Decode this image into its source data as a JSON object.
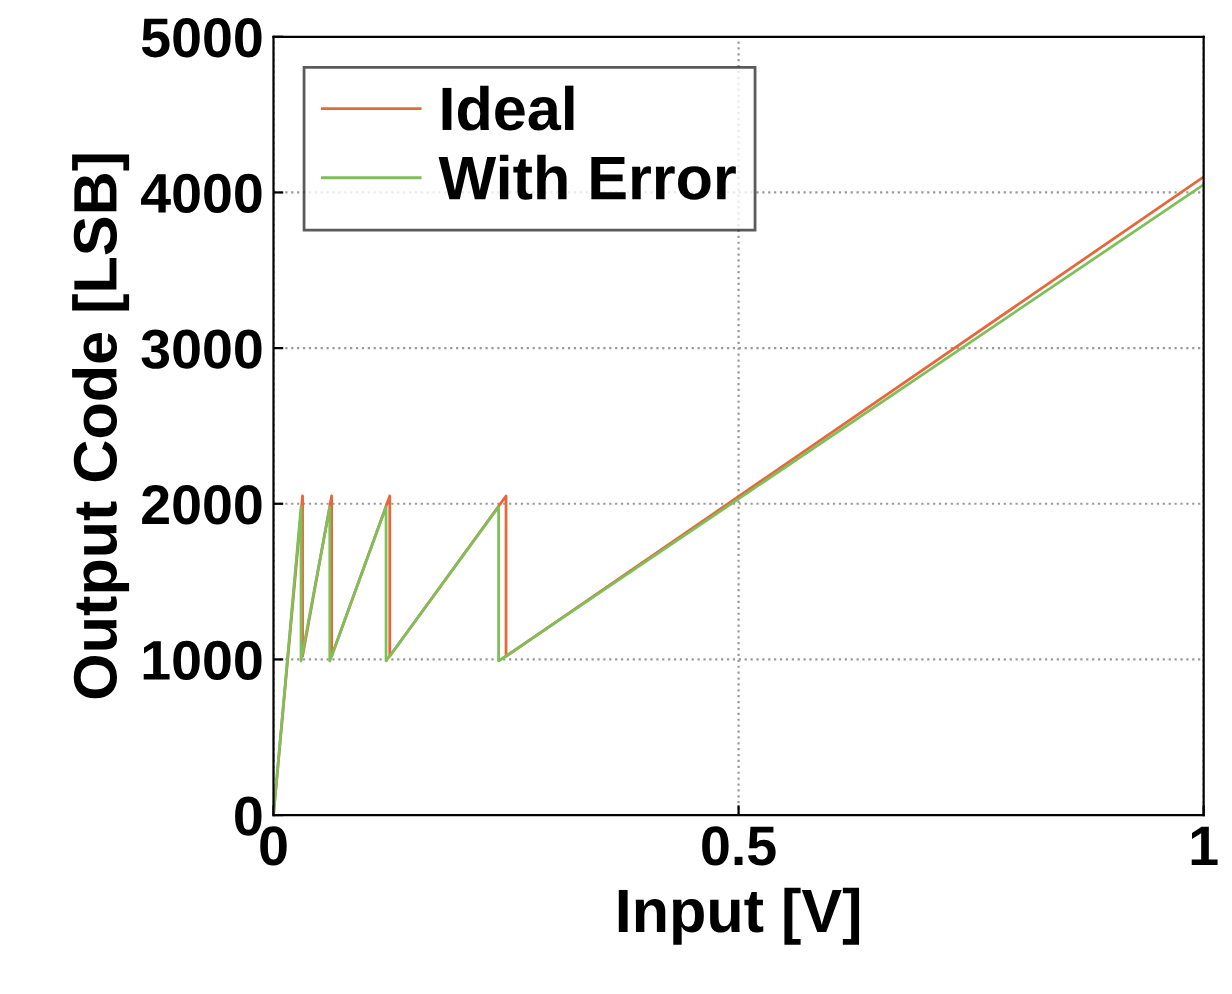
{
  "chart_data": {
    "type": "line",
    "xlabel": "Input [V]",
    "ylabel": "Output Code [LSB]",
    "xlim": [
      0,
      1
    ],
    "xticks": [
      0,
      0.5,
      1
    ],
    "ylim": [
      0,
      5000
    ],
    "yticks": [
      0,
      1000,
      2000,
      3000,
      4000,
      5000
    ],
    "grid": true,
    "legend": "top left",
    "series": [
      {
        "name": "Ideal",
        "color": "#e8673a",
        "x": [
          0,
          0.03125,
          0.03125,
          0.0625,
          0.0625,
          0.125,
          0.125,
          0.25,
          0.25,
          1
        ],
        "values": [
          0,
          2050,
          1020,
          2050,
          1020,
          2050,
          1020,
          2050,
          1020,
          4100
        ]
      },
      {
        "name": "With Error",
        "color": "#7fbf5a",
        "x": [
          0,
          0.0296,
          0.0296,
          0.0605,
          0.0605,
          0.121,
          0.121,
          0.242,
          0.242,
          1
        ],
        "values": [
          0,
          1980,
          990,
          1980,
          990,
          1980,
          990,
          1980,
          990,
          4050
        ]
      }
    ]
  }
}
